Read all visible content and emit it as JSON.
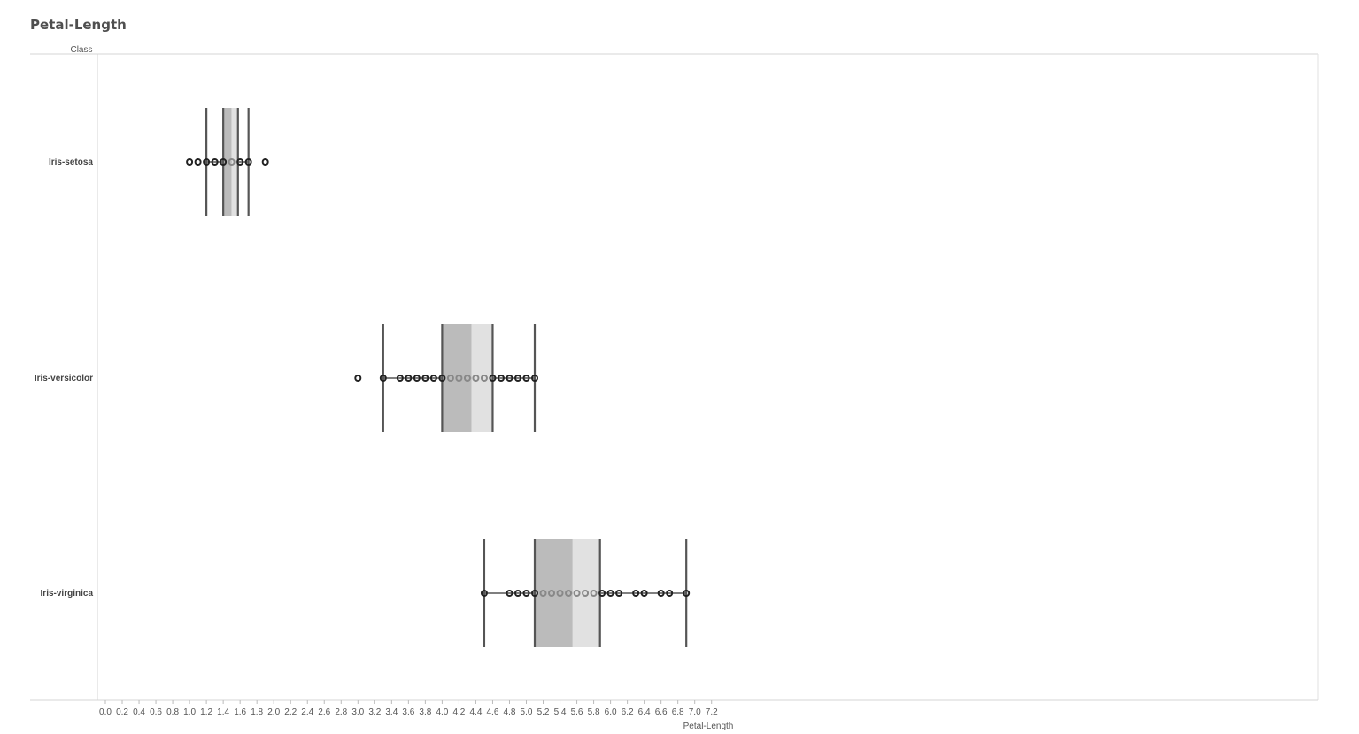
{
  "title": "Petal-Length",
  "row_header": "Class",
  "chart_data": {
    "type": "box",
    "xlabel": "Petal-Length",
    "ylabel": "Class",
    "xlim": [
      0.0,
      7.2
    ],
    "x_ticks": [
      "0.0",
      "0.2",
      "0.4",
      "0.6",
      "0.8",
      "1.0",
      "1.2",
      "1.4",
      "1.6",
      "1.8",
      "2.0",
      "2.2",
      "2.4",
      "2.6",
      "2.8",
      "3.0",
      "3.2",
      "3.4",
      "3.6",
      "3.8",
      "4.0",
      "4.2",
      "4.4",
      "4.6",
      "4.8",
      "5.0",
      "5.2",
      "5.4",
      "5.6",
      "5.8",
      "6.0",
      "6.2",
      "6.4",
      "6.6",
      "6.8",
      "7.0",
      "7.2"
    ],
    "grid": false,
    "colors": {
      "lower_box": "#bbbbbb",
      "upper_box": "#e1e1e1",
      "whisker": "#555555",
      "point_dark": "#222222",
      "point_light": "#888888"
    },
    "series": [
      {
        "name": "Iris-setosa",
        "whisker_low": 1.2,
        "q1": 1.4,
        "median": 1.5,
        "q3": 1.575,
        "whisker_high": 1.7,
        "points": [
          1.0,
          1.1,
          1.2,
          1.3,
          1.4,
          1.5,
          1.6,
          1.7,
          1.9
        ]
      },
      {
        "name": "Iris-versicolor",
        "whisker_low": 3.3,
        "q1": 4.0,
        "median": 4.35,
        "q3": 4.6,
        "whisker_high": 5.1,
        "points": [
          3.0,
          3.3,
          3.5,
          3.6,
          3.7,
          3.8,
          3.9,
          4.0,
          4.1,
          4.2,
          4.3,
          4.4,
          4.5,
          4.6,
          4.7,
          4.8,
          4.9,
          5.0,
          5.1
        ]
      },
      {
        "name": "Iris-virginica",
        "whisker_low": 4.5,
        "q1": 5.1,
        "median": 5.55,
        "q3": 5.875,
        "whisker_high": 6.9,
        "points": [
          4.5,
          4.8,
          4.9,
          5.0,
          5.1,
          5.2,
          5.3,
          5.4,
          5.5,
          5.6,
          5.7,
          5.8,
          5.9,
          6.0,
          6.1,
          6.3,
          6.4,
          6.6,
          6.7,
          6.9
        ]
      }
    ]
  }
}
